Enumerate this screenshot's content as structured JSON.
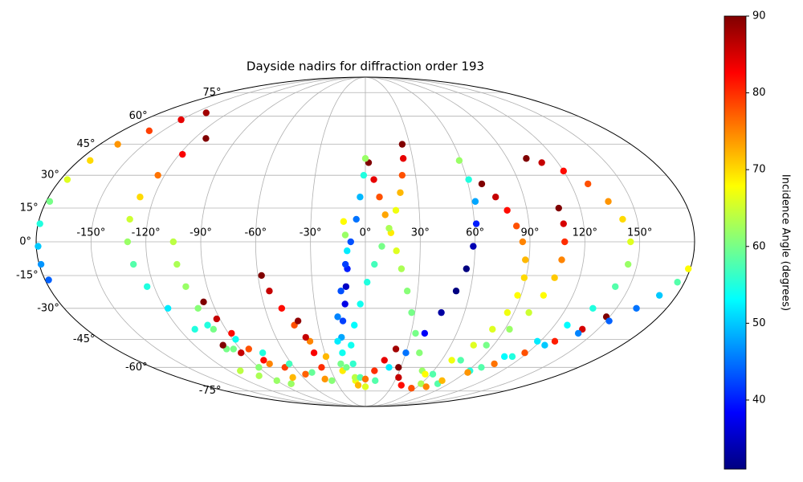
{
  "chart_data": {
    "type": "scatter",
    "projection": "mollweide",
    "title": "Dayside nadirs for diffraction order 193",
    "xlim": [
      -180,
      180
    ],
    "ylim": [
      -90,
      90
    ],
    "grid": true,
    "xticks": [
      {
        "value": -150,
        "label": "-150°"
      },
      {
        "value": -120,
        "label": "-120°"
      },
      {
        "value": -90,
        "label": "-90°"
      },
      {
        "value": -60,
        "label": "-60°"
      },
      {
        "value": -30,
        "label": "-30°"
      },
      {
        "value": 0,
        "label": "0°"
      },
      {
        "value": 30,
        "label": "30°"
      },
      {
        "value": 60,
        "label": "60°"
      },
      {
        "value": 90,
        "label": "90°"
      },
      {
        "value": 120,
        "label": "120°"
      },
      {
        "value": 150,
        "label": "150°"
      }
    ],
    "yticks": [
      {
        "value": -75,
        "label": "-75°"
      },
      {
        "value": -60,
        "label": "-60°"
      },
      {
        "value": -45,
        "label": "-45°"
      },
      {
        "value": -30,
        "label": "-30°"
      },
      {
        "value": -15,
        "label": "-15°"
      },
      {
        "value": 0,
        "label": "0°"
      },
      {
        "value": 15,
        "label": "15°"
      },
      {
        "value": 30,
        "label": "30°"
      },
      {
        "value": 45,
        "label": "45°"
      },
      {
        "value": 60,
        "label": "60°"
      },
      {
        "value": 75,
        "label": "75°"
      }
    ],
    "colorbar": {
      "label": "Incidence Angle (degrees)",
      "colormap": "jet",
      "lim": [
        31,
        90
      ],
      "ticks": [
        40,
        50,
        60,
        70,
        80,
        90
      ]
    },
    "series": [
      {
        "x": [
          -140,
          -150,
          -160,
          -168,
          -173,
          -176,
          -178,
          -179,
          -179,
          -179,
          -178
        ],
        "y": [
          62,
          58,
          52,
          45,
          37,
          28,
          18,
          8,
          -2,
          -10,
          -17
        ],
        "values": [
          88,
          84,
          79,
          74,
          70,
          66,
          60,
          55,
          50,
          47,
          44
        ]
      },
      {
        "x": [
          -112,
          -118,
          -124,
          -128,
          -130,
          -130,
          -128,
          -124,
          -118,
          -110,
          -100,
          -90,
          -80
        ],
        "y": [
          48,
          40,
          30,
          20,
          10,
          0,
          -10,
          -20,
          -30,
          -40,
          -50,
          -60,
          -70
        ],
        "values": [
          90,
          83,
          76,
          70,
          65,
          62,
          58,
          55,
          52,
          55,
          60,
          66,
          72
        ]
      },
      {
        "x": [
          -105,
          -104,
          -102,
          -100,
          -98,
          -95,
          -90,
          -80
        ],
        "y": [
          0,
          -10,
          -20,
          -30,
          -40,
          -50,
          -60,
          -70
        ],
        "values": [
          64,
          63,
          62,
          61,
          60,
          60,
          61,
          62
        ]
      },
      {
        "x": [
          -95,
          -92,
          -88,
          -84,
          -78,
          -70
        ],
        "y": [
          -27,
          -35,
          -42,
          -50,
          -58,
          -66
        ],
        "values": [
          90,
          86,
          82,
          78,
          75,
          72
        ]
      },
      {
        "x": [
          -100,
          -92,
          -80,
          -68,
          -55,
          -40
        ],
        "y": [
          -48,
          -52,
          -56,
          -60,
          -64,
          -67
        ],
        "values": [
          90,
          86,
          82,
          79,
          77,
          74
        ]
      },
      {
        "x": [
          -100,
          -88,
          -76,
          -62,
          -48,
          -34
        ],
        "y": [
          -38,
          -45,
          -52,
          -58,
          -63,
          -68
        ],
        "values": [
          55,
          54,
          55,
          57,
          59,
          61
        ]
      },
      {
        "x": [
          -110,
          -100,
          -90
        ],
        "y": [
          -62,
          -65,
          -68
        ],
        "values": [
          64,
          63,
          62
        ]
      },
      {
        "x": [
          -58,
          -55,
          -50,
          -45,
          -38,
          -30,
          -20,
          -10,
          0
        ],
        "y": [
          -15,
          -22,
          -30,
          -38,
          -46,
          -54,
          -62,
          -68,
          -72
        ],
        "values": [
          90,
          86,
          82,
          78,
          75,
          72,
          69,
          67,
          66
        ]
      },
      {
        "x": [
          -42,
          -40,
          -38,
          -37
        ],
        "y": [
          -36,
          -44,
          -52,
          -60
        ],
        "values": [
          89,
          86,
          83,
          80
        ]
      },
      {
        "x": [
          -12,
          -11,
          -10,
          -10,
          -11,
          -12,
          -14,
          -16,
          -17,
          -16,
          -10
        ],
        "y": [
          9,
          3,
          -4,
          -12,
          -20,
          -28,
          -36,
          -44,
          -52,
          -60,
          -66
        ],
        "values": [
          68,
          62,
          52,
          40,
          35,
          37,
          42,
          48,
          54,
          60,
          64
        ]
      },
      {
        "x": [
          2,
          5,
          8,
          11,
          14,
          17,
          20,
          24,
          28,
          33,
          40,
          50,
          60
        ],
        "y": [
          36,
          28,
          20,
          12,
          4,
          -4,
          -12,
          -22,
          -32,
          -42,
          -52,
          -62,
          -70
        ],
        "values": [
          90,
          84,
          78,
          73,
          69,
          66,
          63,
          61,
          60,
          60,
          61,
          62,
          63
        ]
      },
      {
        "x": [
          25,
          24,
          22,
          20,
          17,
          13,
          9,
          5,
          1,
          -3,
          -7,
          -10,
          -10,
          -5
        ],
        "y": [
          45,
          38,
          30,
          22,
          14,
          6,
          -2,
          -10,
          -18,
          -28,
          -38,
          -48,
          -58,
          -66
        ],
        "values": [
          90,
          84,
          78,
          72,
          67,
          63,
          60,
          57,
          55,
          54,
          53,
          54,
          56,
          58
        ]
      },
      {
        "x": [
          0,
          -1,
          -3,
          -5,
          -8,
          -11,
          -14,
          -17,
          -19,
          -20
        ],
        "y": [
          38,
          30,
          20,
          10,
          0,
          -10,
          -22,
          -34,
          -46,
          -58
        ],
        "values": [
          62,
          55,
          49,
          45,
          43,
          42,
          43,
          46,
          52,
          60
        ]
      },
      {
        "x": [
          59,
          61,
          62,
          61,
          59,
          56,
          52,
          46,
          39,
          30,
          20,
          10
        ],
        "y": [
          37,
          28,
          18,
          8,
          -2,
          -12,
          -22,
          -32,
          -42,
          -52,
          -60,
          -68
        ],
        "values": [
          62,
          55,
          48,
          40,
          34,
          31,
          31,
          33,
          38,
          45,
          52,
          58
        ]
      },
      {
        "x": [
          22,
          15,
          8,
          0,
          -8
        ],
        "y": [
          -50,
          -56,
          -62,
          -67,
          -71
        ],
        "values": [
          88,
          84,
          80,
          76,
          72
        ]
      },
      {
        "x": [
          28,
          32,
          40,
          55,
          70
        ],
        "y": [
          -60,
          -66,
          -71,
          -73,
          -72
        ],
        "values": [
          90,
          86,
          82,
          78,
          75
        ]
      },
      {
        "x": [
          68,
          74,
          79,
          83,
          86,
          88,
          89,
          88,
          86,
          82,
          76,
          68,
          55
        ],
        "y": [
          26,
          20,
          14,
          7,
          0,
          -8,
          -16,
          -24,
          -32,
          -40,
          -48,
          -56,
          -64
        ],
        "values": [
          90,
          86,
          82,
          78,
          75,
          72,
          70,
          68,
          67,
          66,
          66,
          67,
          68
        ]
      },
      {
        "x": [
          108,
          109,
          109,
          108,
          106,
          103,
          99,
          93,
          85,
          75,
          62
        ],
        "y": [
          15,
          8,
          0,
          -8,
          -16,
          -24,
          -32,
          -40,
          -48,
          -56,
          -64
        ],
        "values": [
          90,
          85,
          80,
          75,
          71,
          68,
          65,
          62,
          60,
          58,
          58
        ]
      },
      {
        "x": [
          102,
          110,
          120,
          130,
          137,
          142,
          145,
          145,
          142,
          136,
          128,
          118,
          106,
          92,
          78
        ],
        "y": [
          38,
          36,
          32,
          26,
          18,
          10,
          0,
          -10,
          -20,
          -30,
          -38,
          -46,
          -54,
          -62,
          -70
        ],
        "values": [
          90,
          86,
          82,
          78,
          74,
          70,
          66,
          62,
          58,
          55,
          53,
          52,
          53,
          55,
          58
        ]
      },
      {
        "x": [
          148,
          140,
          130,
          118,
          105,
          92,
          78
        ],
        "y": [
          -34,
          -40,
          -46,
          -52,
          -58,
          -63,
          -68
        ],
        "values": [
          90,
          85,
          81,
          78,
          76,
          74,
          72
        ]
      },
      {
        "x": [
          179,
          176,
          170,
          162,
          152,
          140,
          126,
          112,
          98
        ],
        "y": [
          -12,
          -18,
          -24,
          -30,
          -36,
          -42,
          -48,
          -54,
          -60
        ],
        "values": [
          68,
          58,
          50,
          45,
          44,
          46,
          50,
          55,
          58
        ]
      }
    ]
  }
}
